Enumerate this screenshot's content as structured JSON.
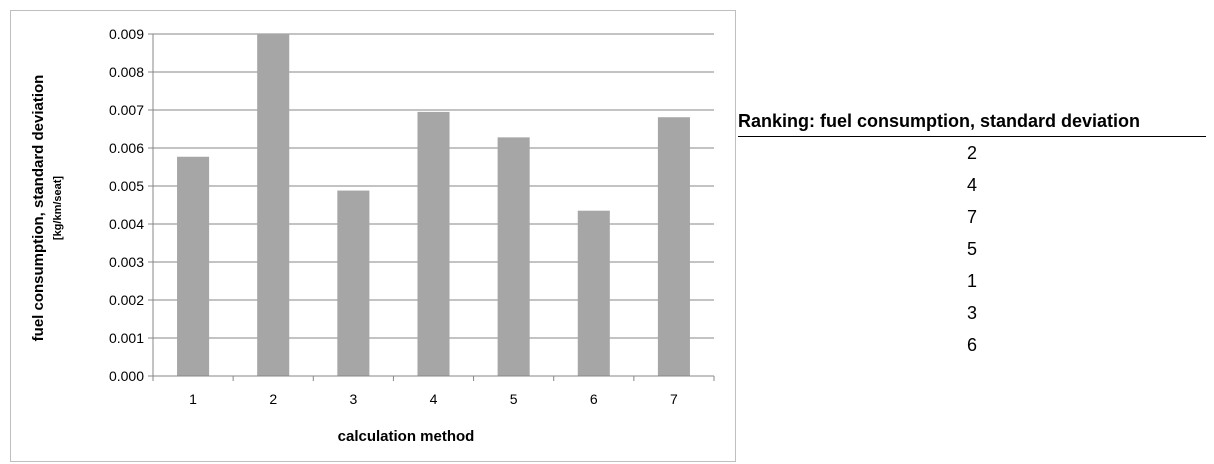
{
  "chart_data": {
    "type": "bar",
    "categories": [
      "1",
      "2",
      "3",
      "4",
      "5",
      "6",
      "7"
    ],
    "values": [
      0.00577,
      0.009,
      0.00488,
      0.00695,
      0.00628,
      0.00435,
      0.00681
    ],
    "title": "",
    "xlabel": "calculation method",
    "ylabel": "fuel consumption, standard deviation",
    "ylabel_unit": "[kg/km/seat]",
    "ylim": [
      0,
      0.009
    ],
    "yticks": [
      "0.000",
      "0.001",
      "0.002",
      "0.003",
      "0.004",
      "0.005",
      "0.006",
      "0.007",
      "0.008",
      "0.009"
    ],
    "grid": true,
    "bar_color": "#a6a6a6",
    "grid_color": "#878787"
  },
  "ranking": {
    "header": "Ranking: fuel consumption, standard deviation",
    "items": [
      "2",
      "4",
      "7",
      "5",
      "1",
      "3",
      "6"
    ]
  }
}
